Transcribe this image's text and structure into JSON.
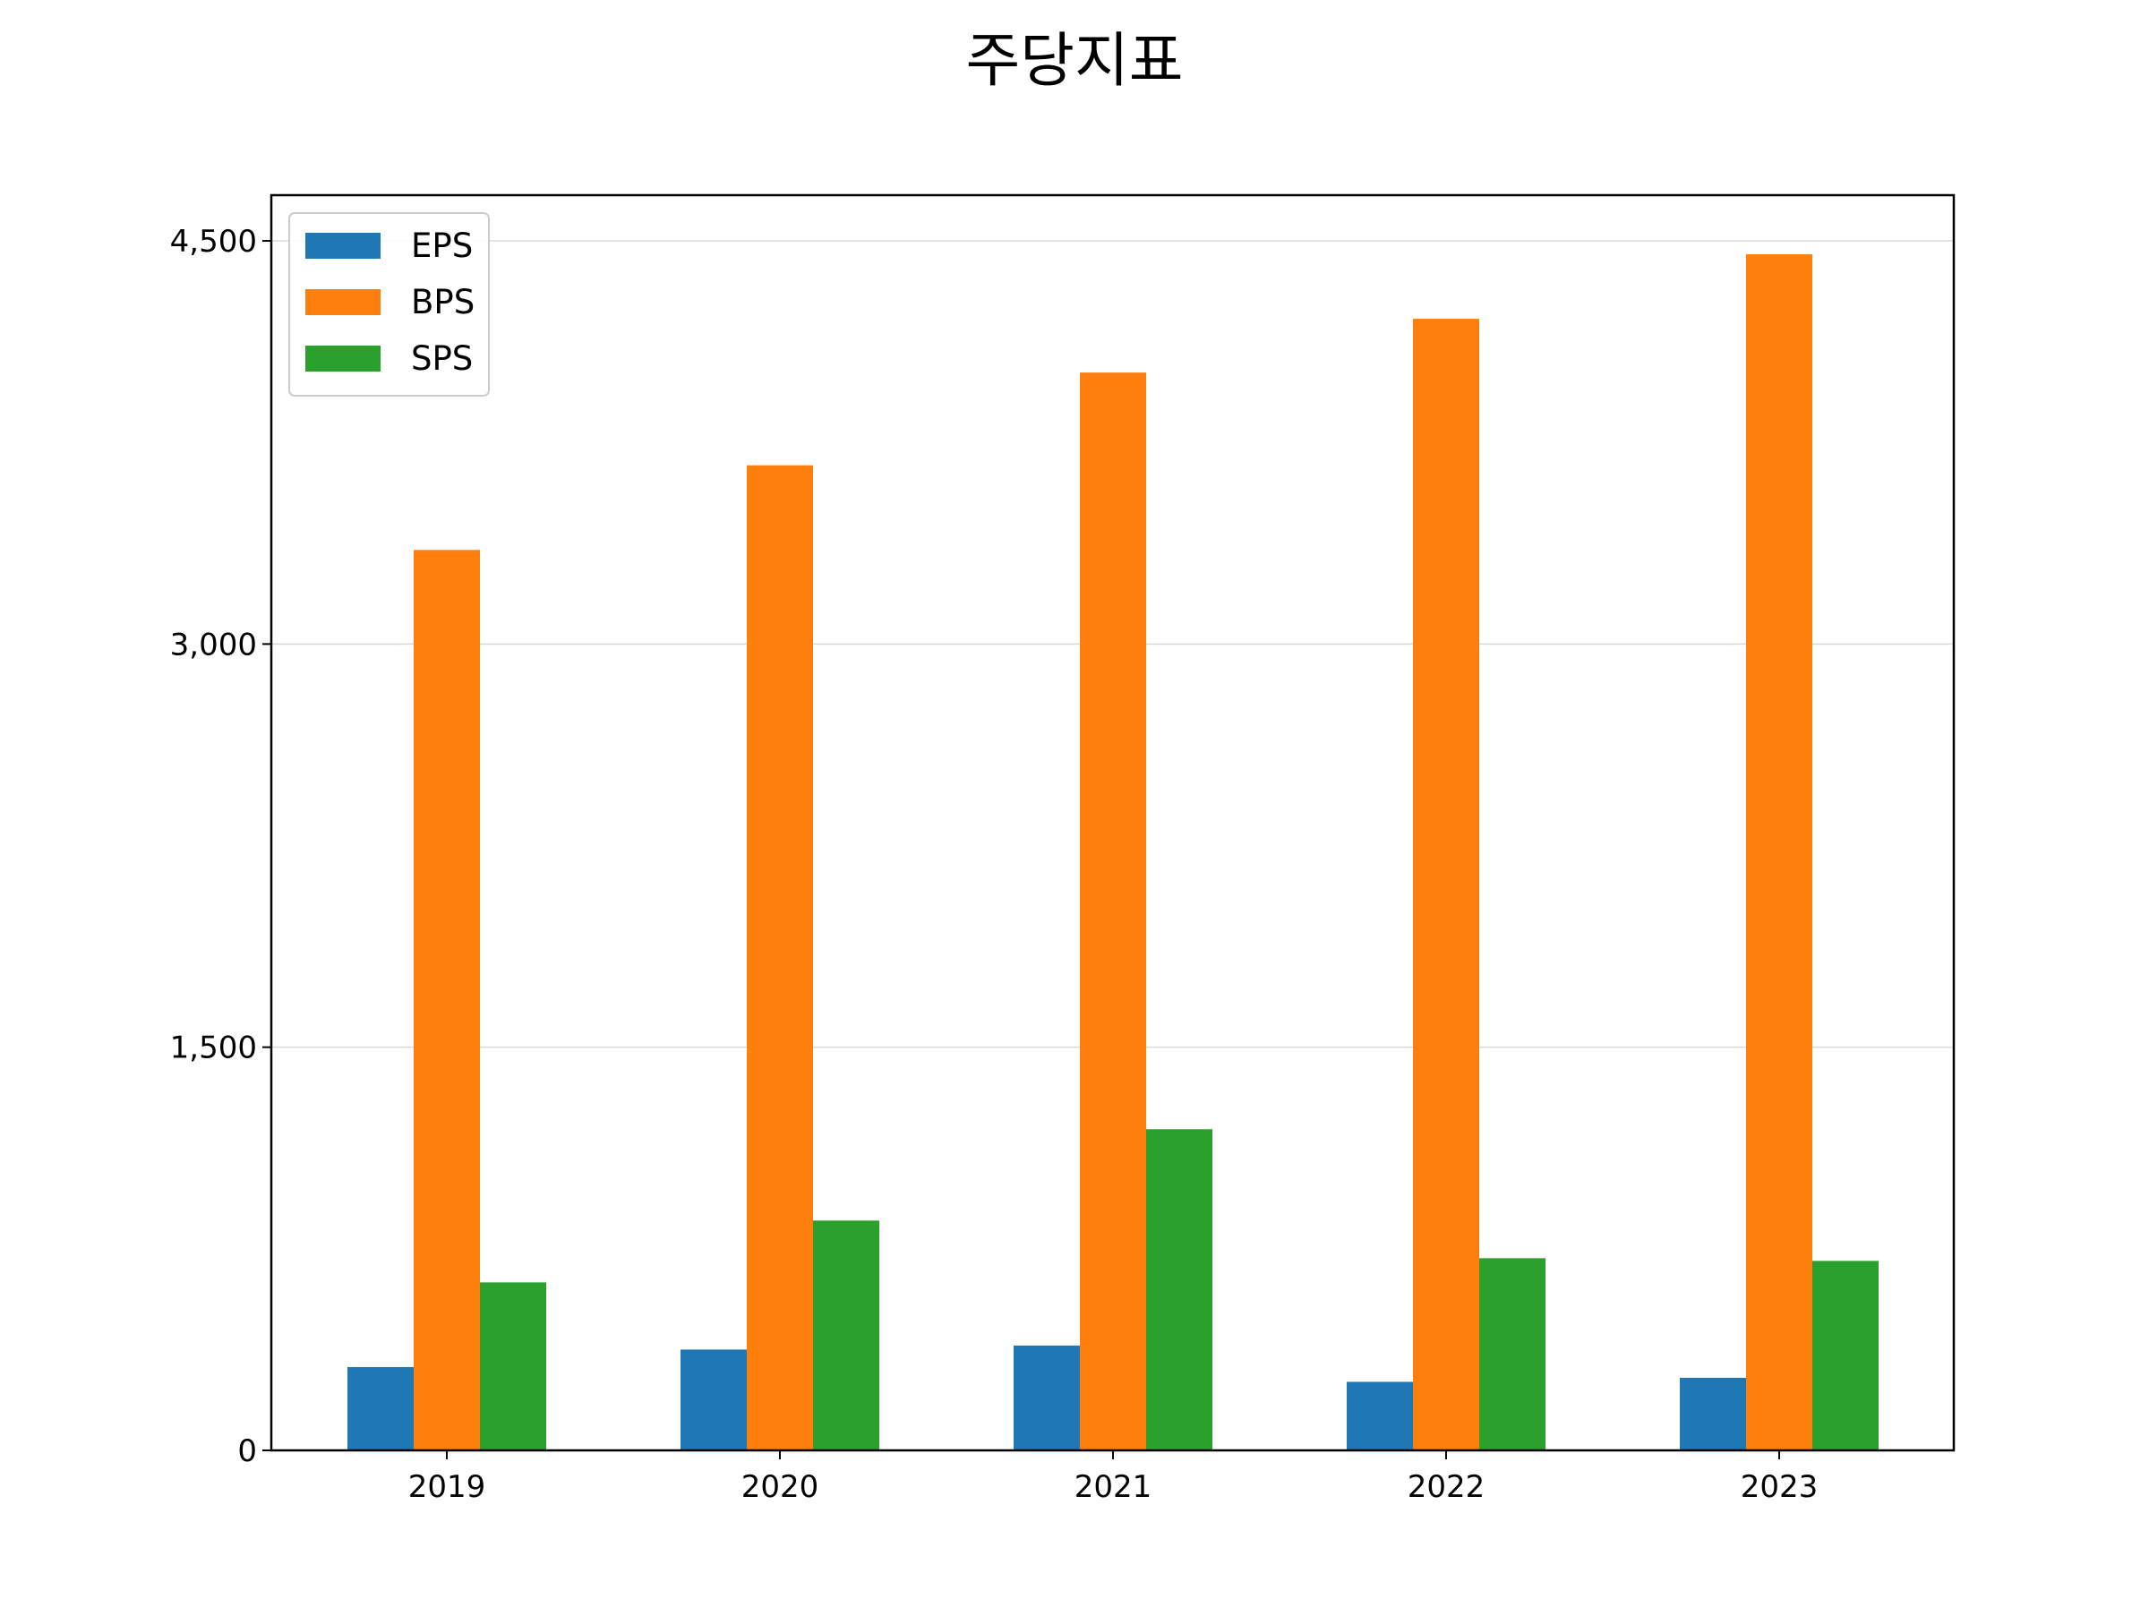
{
  "chart_data": {
    "type": "bar",
    "title": "주당지표",
    "xlabel": "",
    "ylabel": "",
    "categories": [
      "2019",
      "2020",
      "2021",
      "2022",
      "2023"
    ],
    "series": [
      {
        "name": "EPS",
        "color": "#1f77b4",
        "values": [
          310,
          375,
          390,
          255,
          270
        ]
      },
      {
        "name": "BPS",
        "color": "#ff7f0e",
        "values": [
          3350,
          3665,
          4010,
          4210,
          4450
        ]
      },
      {
        "name": "SPS",
        "color": "#2ca02c",
        "values": [
          625,
          855,
          1195,
          715,
          705
        ]
      }
    ],
    "ylim": [
      0,
      4670
    ],
    "yticks": [
      0,
      1500,
      3000,
      4500
    ],
    "ytick_labels": [
      "0",
      "1,500",
      "3,000",
      "4,500"
    ],
    "grid": "y",
    "legend": "top-left"
  }
}
